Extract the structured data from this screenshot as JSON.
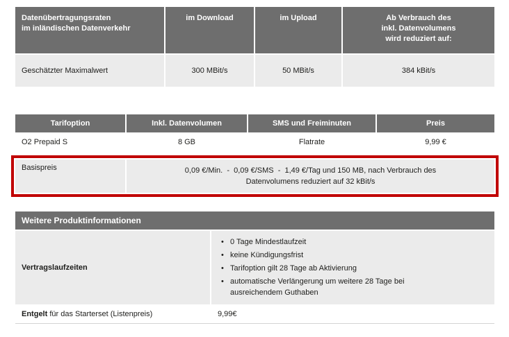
{
  "colors": {
    "header_bg": "#6e6e6e",
    "row_bg": "#ebebeb",
    "highlight_red": "#c00000"
  },
  "speed_table": {
    "header_label_lines": [
      "Datenübertragungsraten",
      "im inländischen Datenverkehr"
    ],
    "header_download": "im Download",
    "header_upload": "im Upload",
    "header_reduced_lines": [
      "Ab Verbrauch des",
      "inkl. Datenvolumens",
      "wird reduziert auf:"
    ],
    "row_label": "Geschätzter Maximalwert",
    "row_download": "300 MBit/s",
    "row_upload": "50 MBit/s",
    "row_reduced": "384 kBit/s"
  },
  "tariff_table": {
    "headers": [
      "Tarifoption",
      "Inkl. Datenvolumen",
      "SMS und Freiminuten",
      "Preis"
    ],
    "plan_row": {
      "option": "O2 Prepaid S",
      "volume": "8 GB",
      "sms": "Flatrate",
      "price": "9,99 €"
    },
    "base_price_row": {
      "label": "Basispreis",
      "details_line1": "0,09 €/Min.  -  0,09 €/SMS  -  1,49 €/Tag und 150 MB, nach Verbrauch des",
      "details_line2": "Datenvolumens reduziert auf 32 kBit/s"
    }
  },
  "product_info": {
    "title": "Weitere Produktinformationen",
    "contract_label": "Vertragslaufzeiten",
    "contract_terms": [
      "0 Tage Mindestlaufzeit",
      "keine Kündigungsfrist",
      "Tarifoption gilt 28 Tage ab Aktivierung",
      "automatische Verlängerung um weitere 28 Tage bei ausreichendem Guthaben"
    ],
    "fee_label_bold": "Entgelt",
    "fee_label_rest": "für das Starterset (Listenpreis)",
    "fee_value": "9,99€"
  }
}
